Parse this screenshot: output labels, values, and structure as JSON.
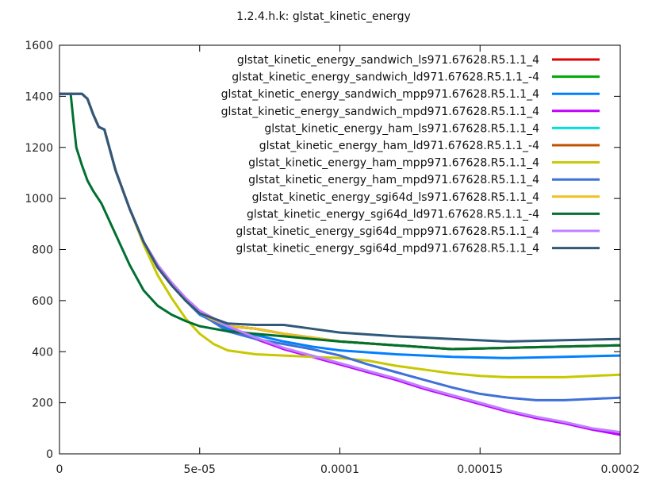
{
  "chart_data": {
    "type": "line",
    "title": "1.2.4.h.k: glstat_kinetic_energy",
    "xlabel": "",
    "ylabel": "",
    "xlim": [
      0,
      0.0002
    ],
    "ylim": [
      0,
      1600
    ],
    "x_ticks": [
      0,
      5e-05,
      0.0001,
      0.00015,
      0.0002
    ],
    "x_tick_labels": [
      "0",
      "5e-05",
      "0.0001",
      "0.00015",
      "0.0002"
    ],
    "y_ticks": [
      0,
      200,
      400,
      600,
      800,
      1000,
      1200,
      1400,
      1600
    ],
    "y_tick_labels": [
      "0",
      "200",
      "400",
      "600",
      "800",
      "1000",
      "1200",
      "1400",
      "1600"
    ],
    "grid": false,
    "legend_position": "top-right",
    "series": [
      {
        "name": "glstat_kinetic_energy_sandwich_ls971.67628.R5.1.1_4",
        "color": "#e00000",
        "x": [
          0,
          8e-06,
          1e-05,
          1.2e-05,
          1.4e-05,
          1.6e-05,
          2e-05,
          2.5e-05,
          3e-05,
          3.5e-05,
          4e-05,
          4.5e-05,
          5e-05,
          6e-05,
          7e-05,
          8e-05,
          9e-05,
          0.0001,
          0.00012,
          0.00014,
          0.00016,
          0.00018,
          0.0002
        ],
        "y": [
          1410,
          1410,
          1390,
          1330,
          1280,
          1270,
          1110,
          960,
          830,
          730,
          660,
          600,
          550,
          500,
          490,
          470,
          455,
          440,
          425,
          410,
          415,
          420,
          425
        ]
      },
      {
        "name": "glstat_kinetic_energy_sandwich_ld971.67628.R5.1.1_-4",
        "color": "#00a800",
        "x": [
          0,
          8e-06,
          1e-05,
          1.2e-05,
          1.4e-05,
          1.6e-05,
          2e-05,
          2.5e-05,
          3e-05,
          3.5e-05,
          4e-05,
          4.5e-05,
          5e-05,
          6e-05,
          7e-05,
          8e-05,
          9e-05,
          0.0001,
          0.00012,
          0.00014,
          0.00016,
          0.00018,
          0.0002
        ],
        "y": [
          1410,
          1410,
          1390,
          1330,
          1280,
          1270,
          1110,
          960,
          830,
          730,
          660,
          600,
          550,
          500,
          490,
          470,
          455,
          440,
          425,
          410,
          415,
          420,
          425
        ]
      },
      {
        "name": "glstat_kinetic_energy_sandwich_mpp971.67628.R5.1.1_4",
        "color": "#0080ff",
        "x": [
          0,
          8e-06,
          1e-05,
          1.2e-05,
          1.4e-05,
          1.6e-05,
          2e-05,
          2.5e-05,
          3e-05,
          3.5e-05,
          4e-05,
          4.5e-05,
          5e-05,
          6e-05,
          7e-05,
          8e-05,
          9e-05,
          0.0001,
          0.00012,
          0.00014,
          0.00016,
          0.00018,
          0.0002
        ],
        "y": [
          1410,
          1410,
          1390,
          1330,
          1280,
          1270,
          1110,
          960,
          830,
          730,
          660,
          600,
          545,
          490,
          465,
          440,
          420,
          405,
          390,
          380,
          375,
          380,
          385
        ]
      },
      {
        "name": "glstat_kinetic_energy_sandwich_mpd971.67628.R5.1.1_4",
        "color": "#c000ff",
        "x": [
          0,
          8e-06,
          1e-05,
          1.2e-05,
          1.4e-05,
          1.6e-05,
          2e-05,
          2.5e-05,
          3e-05,
          3.5e-05,
          4e-05,
          4.5e-05,
          5e-05,
          6e-05,
          7e-05,
          8e-05,
          9e-05,
          0.0001,
          0.00011,
          0.00012,
          0.00013,
          0.00014,
          0.00015,
          0.00016,
          0.00017,
          0.00018,
          0.00019,
          0.0002
        ],
        "y": [
          1410,
          1410,
          1390,
          1330,
          1280,
          1270,
          1110,
          960,
          830,
          740,
          670,
          610,
          560,
          500,
          450,
          410,
          380,
          350,
          320,
          290,
          255,
          225,
          195,
          165,
          140,
          120,
          95,
          75
        ]
      },
      {
        "name": "glstat_kinetic_energy_ham_ls971.67628.R5.1.1_4",
        "color": "#00e0e0",
        "x": [
          0,
          8e-06,
          1e-05,
          1.2e-05,
          1.4e-05,
          1.6e-05,
          2e-05,
          2.5e-05,
          3e-05,
          3.5e-05,
          4e-05,
          4.5e-05,
          5e-05,
          6e-05,
          7e-05,
          8e-05,
          9e-05,
          0.0001,
          0.00012,
          0.00014,
          0.00016,
          0.00018,
          0.0002
        ],
        "y": [
          1410,
          1410,
          1390,
          1330,
          1280,
          1270,
          1110,
          960,
          830,
          730,
          660,
          600,
          550,
          500,
          490,
          470,
          455,
          440,
          425,
          410,
          415,
          420,
          425
        ]
      },
      {
        "name": "glstat_kinetic_energy_ham_ld971.67628.R5.1.1_-4",
        "color": "#c05000",
        "x": [
          0,
          8e-06,
          1e-05,
          1.2e-05,
          1.4e-05,
          1.6e-05,
          2e-05,
          2.5e-05,
          3e-05,
          3.5e-05,
          4e-05,
          4.5e-05,
          5e-05,
          6e-05,
          7e-05,
          8e-05,
          9e-05,
          0.0001,
          0.00012,
          0.00014,
          0.00016,
          0.00018,
          0.0002
        ],
        "y": [
          1410,
          1410,
          1390,
          1330,
          1280,
          1270,
          1110,
          960,
          830,
          730,
          660,
          600,
          550,
          500,
          490,
          470,
          455,
          440,
          425,
          410,
          415,
          420,
          425
        ]
      },
      {
        "name": "glstat_kinetic_energy_ham_mpp971.67628.R5.1.1_4",
        "color": "#c8c800",
        "x": [
          0,
          8e-06,
          1e-05,
          1.2e-05,
          1.4e-05,
          1.6e-05,
          2e-05,
          2.5e-05,
          3e-05,
          3.5e-05,
          4e-05,
          4.5e-05,
          5e-05,
          5.5e-05,
          6e-05,
          7e-05,
          8e-05,
          9e-05,
          0.0001,
          0.00011,
          0.00012,
          0.00013,
          0.00014,
          0.00015,
          0.00016,
          0.00017,
          0.00018,
          0.00019,
          0.0002
        ],
        "y": [
          1410,
          1410,
          1390,
          1330,
          1280,
          1270,
          1110,
          960,
          820,
          700,
          610,
          530,
          470,
          430,
          405,
          390,
          385,
          380,
          375,
          365,
          345,
          330,
          315,
          305,
          300,
          300,
          300,
          305,
          310
        ]
      },
      {
        "name": "glstat_kinetic_energy_ham_mpd971.67628.R5.1.1_4",
        "color": "#4070d8",
        "x": [
          0,
          8e-06,
          1e-05,
          1.2e-05,
          1.4e-05,
          1.6e-05,
          2e-05,
          2.5e-05,
          3e-05,
          3.5e-05,
          4e-05,
          4.5e-05,
          5e-05,
          6e-05,
          7e-05,
          8e-05,
          9e-05,
          0.0001,
          0.00011,
          0.00012,
          0.00013,
          0.00014,
          0.00015,
          0.00016,
          0.00017,
          0.00018,
          0.00019,
          0.0002
        ],
        "y": [
          1410,
          1410,
          1390,
          1330,
          1280,
          1270,
          1110,
          960,
          830,
          735,
          665,
          605,
          550,
          480,
          450,
          430,
          410,
          385,
          350,
          320,
          290,
          260,
          235,
          220,
          210,
          210,
          215,
          220
        ]
      },
      {
        "name": "glstat_kinetic_energy_sgi64d_ls971.67628.R5.1.1_4",
        "color": "#f0c020",
        "x": [
          0,
          8e-06,
          1e-05,
          1.2e-05,
          1.4e-05,
          1.6e-05,
          2e-05,
          2.5e-05,
          3e-05,
          3.5e-05,
          4e-05,
          4.5e-05,
          5e-05,
          6e-05,
          7e-05,
          8e-05,
          9e-05,
          0.0001,
          0.00012,
          0.00014,
          0.00016,
          0.00018,
          0.0002
        ],
        "y": [
          1410,
          1410,
          1390,
          1330,
          1280,
          1270,
          1110,
          960,
          830,
          730,
          660,
          600,
          550,
          500,
          490,
          470,
          455,
          440,
          425,
          410,
          415,
          420,
          425
        ]
      },
      {
        "name": "glstat_kinetic_energy_sgi64d_ld971.67628.R5.1.1_-4",
        "color": "#007030",
        "x": [
          0,
          4e-06,
          5e-06,
          6e-06,
          8e-06,
          1e-05,
          1.2e-05,
          1.5e-05,
          2e-05,
          2.5e-05,
          3e-05,
          3.5e-05,
          4e-05,
          4.5e-05,
          5e-05,
          6e-05,
          7e-05,
          8e-05,
          9e-05,
          0.0001,
          0.00012,
          0.00014,
          0.00016,
          0.00018,
          0.0002
        ],
        "y": [
          1410,
          1410,
          1300,
          1200,
          1130,
          1070,
          1030,
          980,
          860,
          740,
          640,
          580,
          545,
          520,
          500,
          480,
          470,
          460,
          450,
          440,
          425,
          410,
          415,
          420,
          425
        ]
      },
      {
        "name": "glstat_kinetic_energy_sgi64d_mpp971.67628.R5.1.1_4",
        "color": "#c080ff",
        "x": [
          0,
          8e-06,
          1e-05,
          1.2e-05,
          1.4e-05,
          1.6e-05,
          2e-05,
          2.5e-05,
          3e-05,
          3.5e-05,
          4e-05,
          4.5e-05,
          5e-05,
          6e-05,
          7e-05,
          8e-05,
          9e-05,
          0.0001,
          0.00011,
          0.00012,
          0.00013,
          0.00014,
          0.00015,
          0.00016,
          0.00017,
          0.00018,
          0.00019,
          0.0002
        ],
        "y": [
          1410,
          1410,
          1390,
          1330,
          1280,
          1270,
          1110,
          960,
          830,
          740,
          670,
          610,
          560,
          500,
          455,
          415,
          385,
          355,
          325,
          295,
          260,
          230,
          200,
          170,
          145,
          125,
          100,
          85
        ]
      },
      {
        "name": "glstat_kinetic_energy_sgi64d_mpd971.67628.R5.1.1_4",
        "color": "#305878",
        "x": [
          0,
          8e-06,
          1e-05,
          1.2e-05,
          1.4e-05,
          1.6e-05,
          2e-05,
          2.5e-05,
          3e-05,
          3.5e-05,
          4e-05,
          4.5e-05,
          5e-05,
          6e-05,
          7e-05,
          8e-05,
          9e-05,
          0.0001,
          0.00012,
          0.00014,
          0.00016,
          0.00018,
          0.0002
        ],
        "y": [
          1410,
          1410,
          1390,
          1330,
          1280,
          1270,
          1110,
          960,
          830,
          730,
          660,
          600,
          550,
          510,
          505,
          505,
          490,
          475,
          460,
          450,
          440,
          445,
          450
        ]
      }
    ]
  }
}
